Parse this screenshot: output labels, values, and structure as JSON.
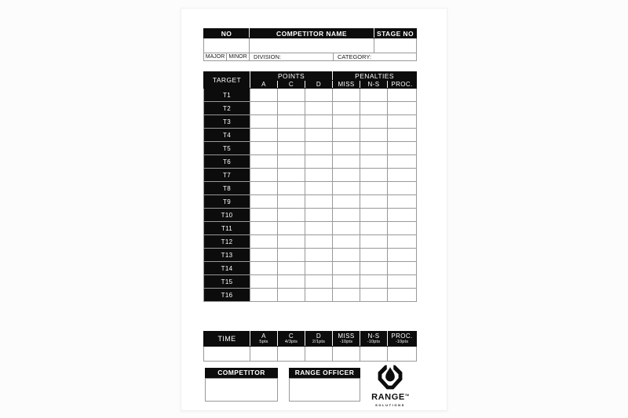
{
  "card": {
    "header": {
      "no": "NO",
      "competitor_name": "COMPETITOR NAME",
      "stage_no": "STAGE NO",
      "major": "MAJOR",
      "minor": "MINOR",
      "division": "DIVISION:",
      "category": "CATEGORY:"
    },
    "score_table": {
      "target": "TARGET",
      "points": "POINTS",
      "penalties": "PENALTIES",
      "point_cols": [
        "A",
        "C",
        "D"
      ],
      "penalty_cols": [
        "MISS",
        "N-S",
        "PROC."
      ],
      "targets": [
        "T1",
        "T2",
        "T3",
        "T4",
        "T5",
        "T6",
        "T7",
        "T8",
        "T9",
        "T10",
        "T11",
        "T12",
        "T13",
        "T14",
        "T15",
        "T16"
      ]
    },
    "time_table": {
      "time": "TIME",
      "cols": [
        {
          "label": "A",
          "sub": "5pts"
        },
        {
          "label": "C",
          "sub": "4/3pts"
        },
        {
          "label": "D",
          "sub": "2/1pts"
        },
        {
          "label": "MISS",
          "sub": "-10pts"
        },
        {
          "label": "N-S",
          "sub": "-10pts"
        },
        {
          "label": "PROC.",
          "sub": "-10pts"
        }
      ]
    },
    "signatures": {
      "competitor": "COMPETITOR",
      "range_officer": "RANGE OFFICER"
    },
    "logo": {
      "brand": "RANGE",
      "tm": "TM",
      "sub": "SOLUTIONS",
      "icon": "range-solutions-emblem"
    }
  },
  "colors": {
    "black": "#0c0c0c",
    "grid": "#999999",
    "card_bg": "#ffffff",
    "page_bg": "#fcfcfc"
  }
}
